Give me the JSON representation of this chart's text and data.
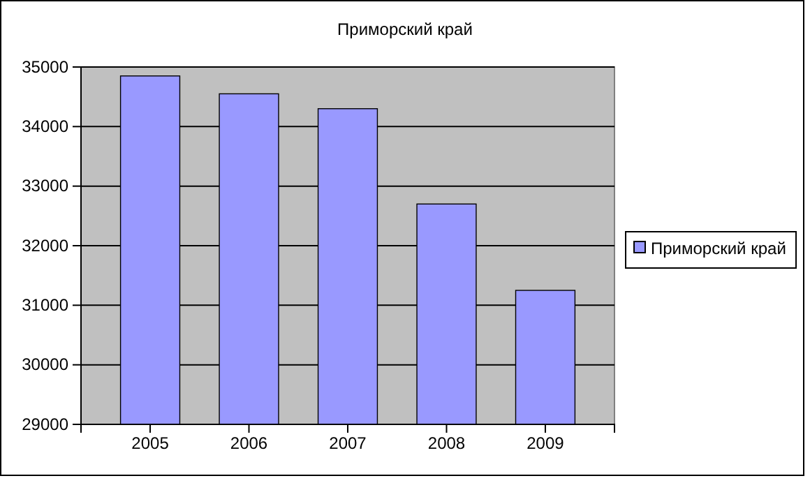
{
  "chart_data": {
    "type": "bar",
    "title": "Приморский край",
    "categories": [
      "2005",
      "2006",
      "2007",
      "2008",
      "2009"
    ],
    "series": [
      {
        "name": "Приморский край",
        "color": "#9999ff",
        "values": [
          34850,
          34550,
          34300,
          32700,
          31250
        ]
      }
    ],
    "ylim": [
      29000,
      35000
    ],
    "yticks": [
      29000,
      30000,
      31000,
      32000,
      33000,
      34000,
      35000
    ],
    "grid": "y",
    "legend": "right"
  }
}
